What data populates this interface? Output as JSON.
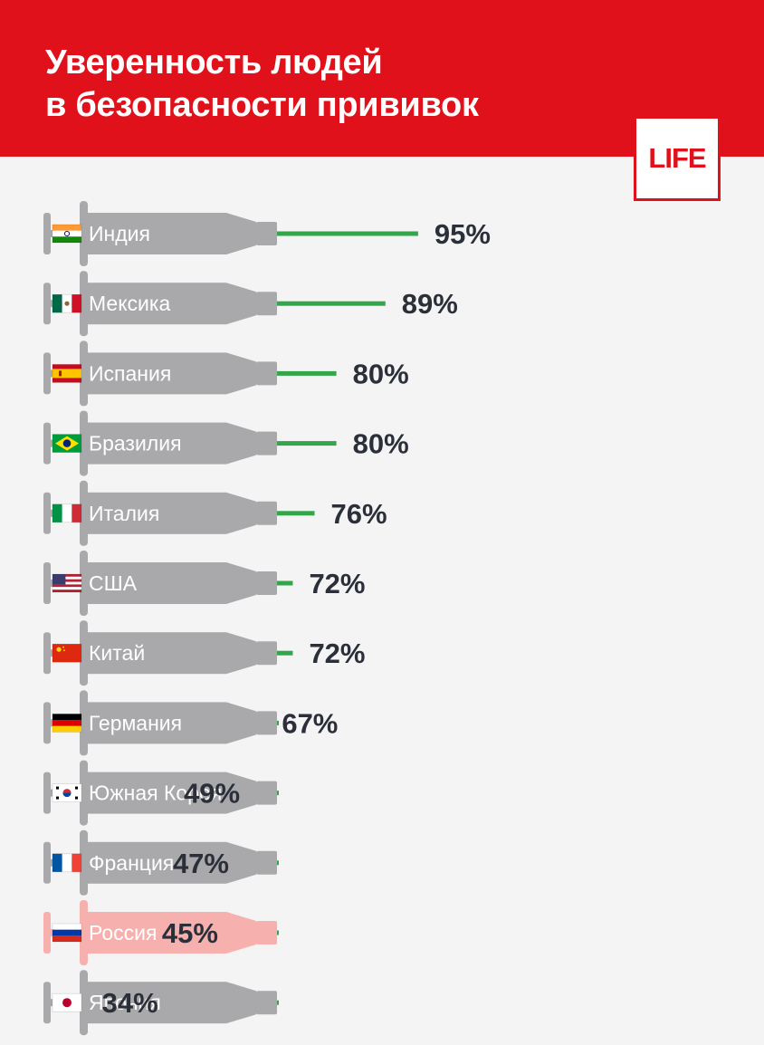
{
  "header": {
    "title_line1": "Уверенность людей",
    "title_line2": "в безопасности прививок",
    "logo": "LIFE"
  },
  "colors": {
    "header_red": "#e0111a",
    "syringe_gray": "#a9a9ab",
    "syringe_highlight": "#f6b0ae",
    "needle_green": "#33a64a",
    "value_text": "#2b2f3a"
  },
  "chart_data": {
    "type": "bar",
    "title": "Уверенность людей в безопасности прививок",
    "unit": "%",
    "highlight": "Россия",
    "categories": [
      "Индия",
      "Мексика",
      "Испания",
      "Бразилия",
      "Италия",
      "США",
      "Китай",
      "Германия",
      "Южная Корея",
      "Франция",
      "Россия",
      "Япония"
    ],
    "values": [
      95,
      89,
      80,
      80,
      76,
      72,
      72,
      67,
      49,
      47,
      45,
      34
    ],
    "labels": [
      "95%",
      "89%",
      "80%",
      "80%",
      "76%",
      "72%",
      "72%",
      "67%",
      "49%",
      "47%",
      "45%",
      "34%"
    ],
    "flags": [
      "india-flag-icon",
      "mexico-flag-icon",
      "spain-flag-icon",
      "brazil-flag-icon",
      "italy-flag-icon",
      "usa-flag-icon",
      "china-flag-icon",
      "germany-flag-icon",
      "south-korea-flag-icon",
      "france-flag-icon",
      "russia-flag-icon",
      "japan-flag-icon"
    ]
  }
}
